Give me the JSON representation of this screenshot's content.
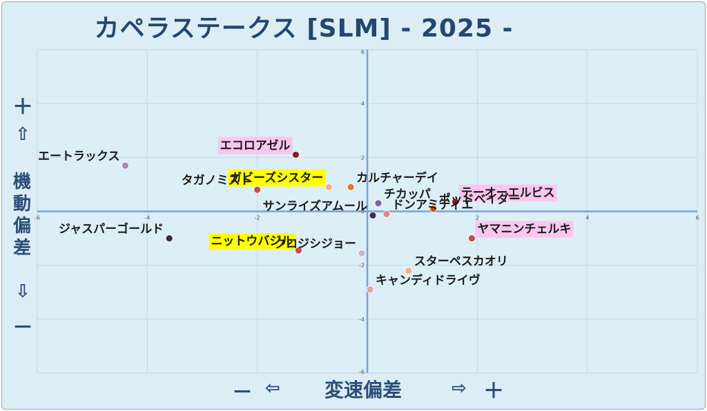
{
  "title": "カペラステークス [SLM]  - 2025 -",
  "y_axis": {
    "plus": "＋",
    "up_arrow": "⇧",
    "label_chars": [
      "機",
      "動",
      "偏",
      "差"
    ],
    "down_arrow": "⇩",
    "minus": "－"
  },
  "x_axis": {
    "minus": "－",
    "left_arrow": "⇦",
    "label": "変速偏差",
    "right_arrow": "⇨",
    "plus": "＋"
  },
  "chart_data": {
    "type": "scatter",
    "xlim": [
      -6,
      6
    ],
    "ylim": [
      -6,
      6
    ],
    "x_ticks": [
      "-6",
      "-4",
      "-2",
      "0",
      "2",
      "4",
      "6"
    ],
    "y_ticks": [
      "6",
      "4",
      "2",
      "0",
      "-2",
      "-4",
      "-6"
    ],
    "grid": true,
    "colors": {
      "highlight_pink": "#f9c6ef",
      "highlight_yellow": "#ffff00",
      "axis_line": "#7aa2d6",
      "grid_line": "#c4d6e6"
    },
    "points": [
      {
        "label": "エートラックス",
        "x": -4.4,
        "y": 1.7,
        "color": "#a984b8",
        "highlight": "",
        "anchor": "end"
      },
      {
        "label": "エコロアゼル",
        "x": -1.3,
        "y": 2.1,
        "color": "#8b1c2a",
        "highlight": "pink",
        "anchor": "end"
      },
      {
        "label": "ガビーズシスター",
        "x": -0.7,
        "y": 0.9,
        "color": "#f4b183",
        "highlight": "yellow",
        "anchor": "end"
      },
      {
        "label": "カルチャーデイ",
        "x": -0.3,
        "y": 0.9,
        "color": "#e8782a",
        "highlight": "",
        "anchor": "start"
      },
      {
        "label": "タガノミスト",
        "x": -2.0,
        "y": 0.8,
        "color": "#c0504d",
        "highlight": "",
        "anchor": "end"
      },
      {
        "label": "チカッパ",
        "x": 0.2,
        "y": 0.3,
        "color": "#8064a2",
        "highlight": "",
        "anchor": "start"
      },
      {
        "label": "テーオーエルビス",
        "x": 1.6,
        "y": 0.35,
        "color": "#8b1c2a",
        "highlight": "pink",
        "anchor": "start"
      },
      {
        "label": "ポッドベイダー",
        "x": 1.2,
        "y": 0.1,
        "color": "#d35400",
        "highlight": "",
        "anchor": "start"
      },
      {
        "label": "サンライズアムール",
        "x": 0.1,
        "y": -0.15,
        "color": "#403060",
        "highlight": "",
        "anchor": "end"
      },
      {
        "label": "ドンアミティエ",
        "x": 0.35,
        "y": -0.1,
        "color": "#d98880",
        "highlight": "",
        "anchor": "start"
      },
      {
        "label": "ジャスパーゴールド",
        "x": -3.6,
        "y": -1.0,
        "color": "#3b2a4f",
        "highlight": "",
        "anchor": "end"
      },
      {
        "label": "ヤマニンチェルキ",
        "x": 1.9,
        "y": -1.0,
        "color": "#c0504d",
        "highlight": "pink",
        "anchor": "start"
      },
      {
        "label": "ニットウバジル",
        "x": -1.25,
        "y": -1.45,
        "color": "#c0504d",
        "highlight": "yellow",
        "anchor": "end"
      },
      {
        "label": "クロジシジョー",
        "x": -0.1,
        "y": -1.55,
        "color": "#bcbcc8",
        "highlight": "",
        "anchor": "end"
      },
      {
        "label": "スターペスカオリ",
        "x": 0.75,
        "y": -2.2,
        "color": "#f4b183",
        "highlight": "",
        "anchor": "start"
      },
      {
        "label": "キャンディドライヴ",
        "x": 0.05,
        "y": -2.9,
        "color": "#e6a0a0",
        "highlight": "",
        "anchor": "start"
      }
    ]
  }
}
